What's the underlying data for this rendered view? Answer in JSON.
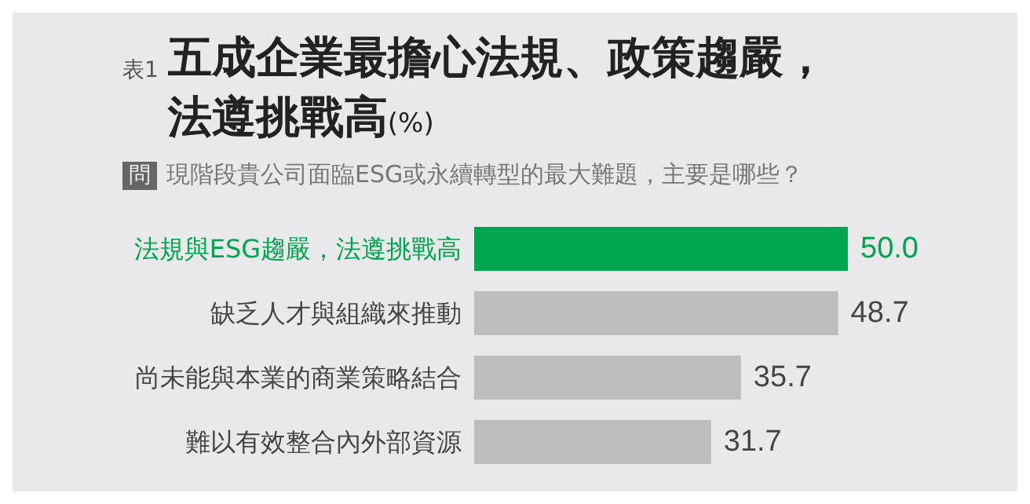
{
  "chart_data": {
    "type": "bar",
    "orientation": "horizontal",
    "title": "表1 五成企業最擔心法規、政策趨嚴，法遵挑戰高(%)",
    "subtitle": "問 現階段貴公司面臨ESG或永續轉型的最大難題，主要是哪些？",
    "categories": [
      "法規與ESG趨嚴，法遵挑戰高",
      "缺乏人才與組織來推動",
      "尚未能與本業的商業策略結合",
      "難以有效整合內外部資源"
    ],
    "values": [
      50.0,
      48.7,
      35.7,
      31.7
    ],
    "colors": [
      "#00a54f",
      "#bcbdc0",
      "#bcbdc0",
      "#bcbdc0"
    ],
    "value_labels": [
      "50.0",
      "48.7",
      "35.7",
      "31.7"
    ],
    "grid": false
  }
}
